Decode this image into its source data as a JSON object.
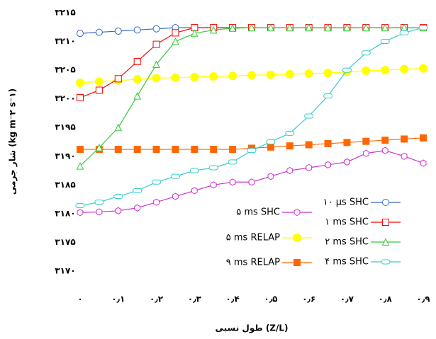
{
  "chart_data": {
    "type": "line",
    "x_label": "طول نسبی (Z/L)",
    "y_label": "شار جرمی (kg m⁻۲ s⁻۱)",
    "xlim": [
      0,
      0.9
    ],
    "ylim": [
      3170,
      3215
    ],
    "xticks": [
      {
        "value": 0,
        "label": "۰"
      },
      {
        "value": 0.1,
        "label": "۰٫۱"
      },
      {
        "value": 0.2,
        "label": "۰٫۲"
      },
      {
        "value": 0.3,
        "label": "۰٫۳"
      },
      {
        "value": 0.4,
        "label": "۰٫۴"
      },
      {
        "value": 0.5,
        "label": "۰٫۵"
      },
      {
        "value": 0.6,
        "label": "۰٫۶"
      },
      {
        "value": 0.7,
        "label": "۰٫۷"
      },
      {
        "value": 0.8,
        "label": "۰٫۸"
      },
      {
        "value": 0.9,
        "label": "۰٫۹"
      }
    ],
    "yticks": [
      {
        "value": 3170,
        "label": "۳۱۷۰"
      },
      {
        "value": 3175,
        "label": "۳۱۷۵"
      },
      {
        "value": 3180,
        "label": "۳۱۸۰"
      },
      {
        "value": 3185,
        "label": "۳۱۸۵"
      },
      {
        "value": 3190,
        "label": "۳۱۹۰"
      },
      {
        "value": 3195,
        "label": "۳۱۹۵"
      },
      {
        "value": 3200,
        "label": "۳۲۰۰"
      },
      {
        "value": 3205,
        "label": "۳۲۰۵"
      },
      {
        "value": 3210,
        "label": "۳۲۱۰"
      },
      {
        "value": 3215,
        "label": "۳۲۱۵"
      }
    ],
    "x": [
      0,
      0.05,
      0.1,
      0.15,
      0.2,
      0.25,
      0.3,
      0.35,
      0.4,
      0.45,
      0.5,
      0.55,
      0.6,
      0.65,
      0.7,
      0.75,
      0.8,
      0.85,
      0.9
    ],
    "series": [
      {
        "name": "۵ ms SHC",
        "color": "#cc33cc",
        "marker": "hexagon",
        "values": [
          3180.2,
          3180.3,
          3180.5,
          3181,
          3182,
          3183,
          3184,
          3185,
          3185.5,
          3185.5,
          3186.5,
          3187.5,
          3188,
          3188.5,
          3189,
          3190.5,
          3191,
          3190,
          3188.8
        ]
      },
      {
        "name": "۵ ms RELAP",
        "color": "#ffff00",
        "marker": "dot",
        "values": [
          3202.8,
          3203,
          3203.2,
          3203.4,
          3203.6,
          3203.7,
          3203.8,
          3203.9,
          3204,
          3204.1,
          3204.2,
          3204.3,
          3204.4,
          3204.5,
          3204.7,
          3204.9,
          3205,
          3205.2,
          3205.3
        ]
      },
      {
        "name": "۹ ms RELAP",
        "color": "#ff6600",
        "marker": "filled-square",
        "values": [
          3191.2,
          3191.2,
          3191.2,
          3191.2,
          3191.2,
          3191.2,
          3191.2,
          3191.2,
          3191.2,
          3191.4,
          3191.6,
          3191.8,
          3192,
          3192.2,
          3192.4,
          3192.6,
          3192.8,
          3193,
          3193.2
        ]
      },
      {
        "name": "۱۰ μs SHC",
        "color": "#3366cc",
        "marker": "circle",
        "values": [
          3211.4,
          3211.6,
          3211.8,
          3212,
          3212.2,
          3212.4,
          3212.4,
          3212.4,
          3212.4,
          3212.4,
          3212.4,
          3212.4,
          3212.4,
          3212.4,
          3212.4,
          3212.4,
          3212.4,
          3212.4,
          3212.4
        ]
      },
      {
        "name": "۱ ms SHC",
        "color": "#ff0000",
        "marker": "square",
        "values": [
          3200.2,
          3201.5,
          3203.5,
          3206.5,
          3209.5,
          3211.5,
          3212.4,
          3212.4,
          3212.4,
          3212.4,
          3212.4,
          3212.4,
          3212.4,
          3212.4,
          3212.4,
          3212.4,
          3212.4,
          3212.4,
          3212.4
        ]
      },
      {
        "name": "۲ ms SHC",
        "color": "#33cc33",
        "marker": "triangle",
        "values": [
          3188.3,
          3191.5,
          3195,
          3200.5,
          3206,
          3210,
          3211.4,
          3212,
          3212.3,
          3212.4,
          3212.4,
          3212.4,
          3212.4,
          3212.4,
          3212.4,
          3212.4,
          3212.4,
          3212.4,
          3212.4
        ]
      },
      {
        "name": "۴ ms SHC",
        "color": "#33cccc",
        "marker": "capsule",
        "values": [
          3181.4,
          3182,
          3183,
          3184,
          3185.5,
          3186.5,
          3187.5,
          3188,
          3189,
          3191,
          3192.5,
          3194,
          3197,
          3200.5,
          3205,
          3208,
          3210,
          3211.5,
          3212.4
        ]
      }
    ]
  }
}
